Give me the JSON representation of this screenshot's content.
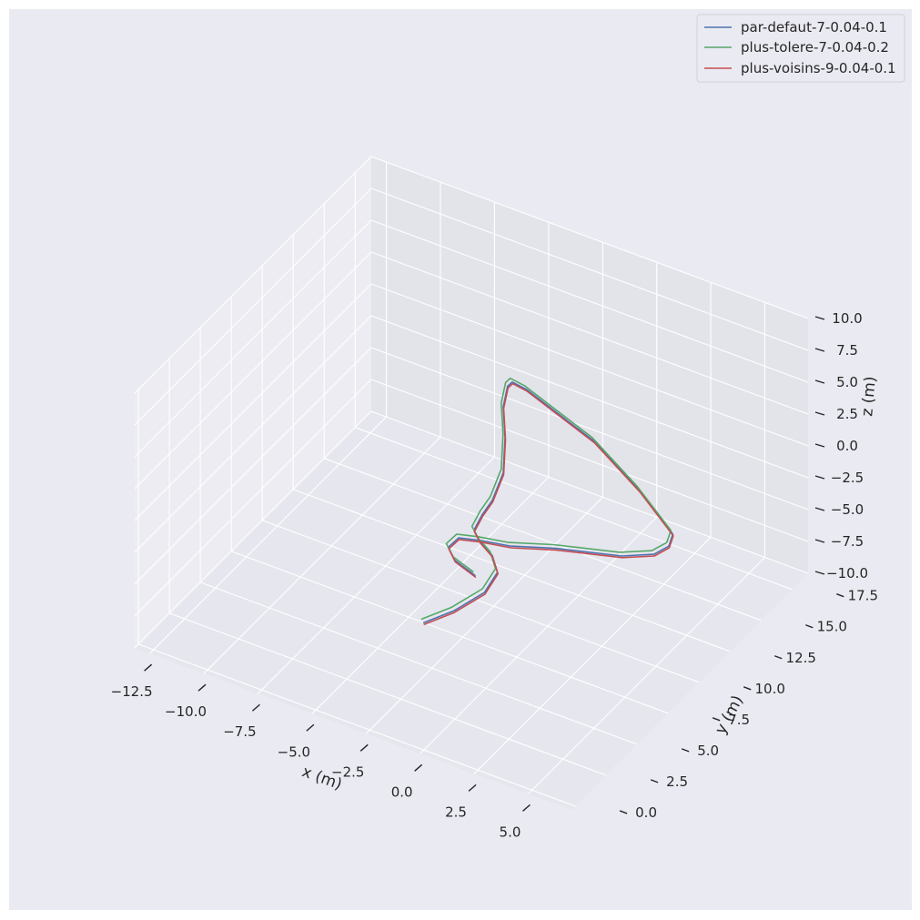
{
  "chart_data": {
    "type": "line",
    "projection": "3d",
    "title": "",
    "xlabel": "x (m)",
    "ylabel": "y (m)",
    "zlabel": "z (m)",
    "xlim": [
      -13.2,
      7.0
    ],
    "ylim": [
      -0.3,
      18.8
    ],
    "zlim": [
      -10,
      10
    ],
    "x_ticks": [
      "−12.5",
      "−10.0",
      "−7.5",
      "−5.0",
      "−2.5",
      "0.0",
      "2.5",
      "5.0"
    ],
    "y_ticks": [
      "0.0",
      "2.5",
      "5.0",
      "7.5",
      "10.0",
      "12.5",
      "15.0",
      "17.5"
    ],
    "z_ticks": [
      "−10.0",
      "−7.5",
      "−5.0",
      "−2.5",
      "0.0",
      "2.5",
      "5.0",
      "7.5",
      "10.0"
    ],
    "grid": true,
    "legend_position": "top-right",
    "series": [
      {
        "name": "par-defaut-7-0.04-0.1",
        "color": "#4c72b0"
      },
      {
        "name": "plus-tolere-7-0.04-0.2",
        "color": "#55a868"
      },
      {
        "name": "plus-voisins-9-0.04-0.1",
        "color": "#c44e52"
      }
    ],
    "trajectory": [
      {
        "x": 0.0,
        "y": 0.0,
        "z": 0.0
      },
      {
        "x": 0.7,
        "y": 1.2,
        "z": 0.2
      },
      {
        "x": 1.2,
        "y": 2.8,
        "z": 0.4
      },
      {
        "x": 1.0,
        "y": 4.2,
        "z": 0.5
      },
      {
        "x": 0.3,
        "y": 5.0,
        "z": 0.6
      },
      {
        "x": -0.5,
        "y": 5.4,
        "z": 0.8
      },
      {
        "x": -1.0,
        "y": 5.8,
        "z": 1.0
      },
      {
        "x": -1.2,
        "y": 6.8,
        "z": 1.1
      },
      {
        "x": -1.3,
        "y": 7.8,
        "z": 1.2
      },
      {
        "x": -1.6,
        "y": 9.2,
        "z": 1.8
      },
      {
        "x": -2.2,
        "y": 10.4,
        "z": 3.0
      },
      {
        "x": -2.8,
        "y": 11.3,
        "z": 4.2
      },
      {
        "x": -3.0,
        "y": 12.0,
        "z": 5.0
      },
      {
        "x": -2.9,
        "y": 12.2,
        "z": 5.2
      },
      {
        "x": -2.3,
        "y": 12.3,
        "z": 4.9
      },
      {
        "x": 1.0,
        "y": 12.0,
        "z": 3.2
      },
      {
        "x": 3.5,
        "y": 11.3,
        "z": 1.6
      },
      {
        "x": 5.5,
        "y": 10.5,
        "z": 0.2
      },
      {
        "x": 5.6,
        "y": 10.0,
        "z": -0.2
      },
      {
        "x": 5.2,
        "y": 9.5,
        "z": -0.6
      },
      {
        "x": 4.0,
        "y": 9.0,
        "z": -1.0
      },
      {
        "x": 1.5,
        "y": 8.0,
        "z": -1.0
      },
      {
        "x": 0.0,
        "y": 7.0,
        "z": -0.8
      },
      {
        "x": -1.0,
        "y": 6.3,
        "z": -0.3
      },
      {
        "x": -1.6,
        "y": 5.6,
        "z": 0.2
      },
      {
        "x": -1.5,
        "y": 4.6,
        "z": 0.5
      },
      {
        "x": -0.8,
        "y": 3.9,
        "z": 0.6
      },
      {
        "x": 0.3,
        "y": 3.6,
        "z": 0.4
      }
    ],
    "trajectory_offsets": [
      {
        "series": "par-defaut-7-0.04-0.1",
        "dx": 0.0,
        "dy": 0.0,
        "dz": 0.0
      },
      {
        "series": "plus-tolere-7-0.04-0.2",
        "dx": -0.15,
        "dy": 0.1,
        "dz": 0.1
      },
      {
        "series": "plus-voisins-9-0.04-0.1",
        "dx": 0.05,
        "dy": -0.05,
        "dz": -0.05
      }
    ]
  }
}
